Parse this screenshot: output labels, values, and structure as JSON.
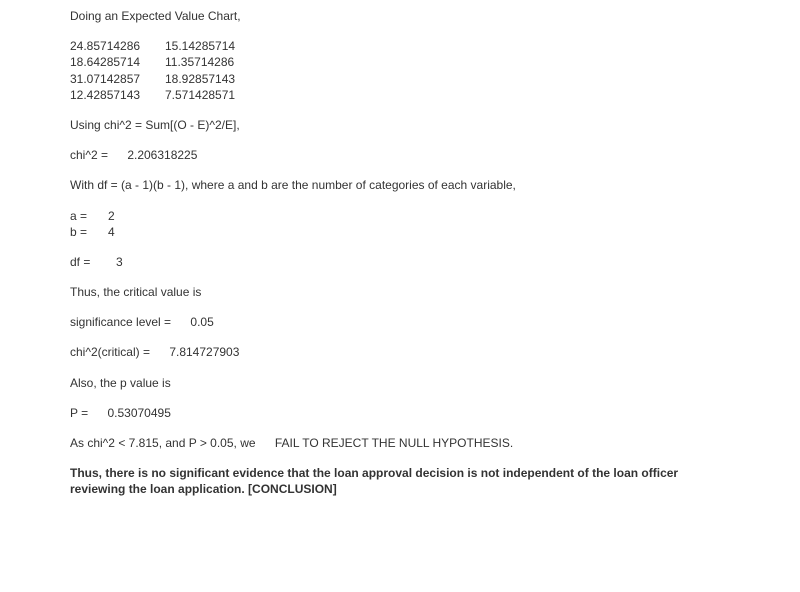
{
  "heading1": "Doing an Expected Value Chart,",
  "table": {
    "rows": [
      [
        "24.85714286",
        "15.14285714"
      ],
      [
        "18.64285714",
        "11.35714286"
      ],
      [
        "31.07142857",
        "18.92857143"
      ],
      [
        "12.42857143",
        "7.571428571"
      ]
    ]
  },
  "chi_formula": "Using chi^2 = Sum[(O - E)^2/E],",
  "chi2_label": "chi^2 = ",
  "chi2_value": "2.206318225",
  "df_formula": "With df = (a - 1)(b - 1), where a and b are the number of categories of each variable,",
  "a_label": "a = ",
  "a_value": "2",
  "b_label": "b = ",
  "b_value": "4",
  "df_label": "df = ",
  "df_value": "3",
  "critical_intro": "Thus, the critical value is",
  "sig_label": "significance level = ",
  "sig_value": "0.05",
  "chi2crit_label": "chi^2(critical) = ",
  "chi2crit_value": "7.814727903",
  "p_intro": "Also, the p value is",
  "p_label": "P = ",
  "p_value": "0.53070495",
  "reject_line_1": "As chi^2 < 7.815, and P > 0.05, we ",
  "reject_line_2": "FAIL TO REJECT THE NULL HYPOTHESIS.",
  "conclusion": "Thus, there is no significant evidence that the loan approval decision is not independent of the loan officer reviewing the loan application. [CONCLUSION]"
}
